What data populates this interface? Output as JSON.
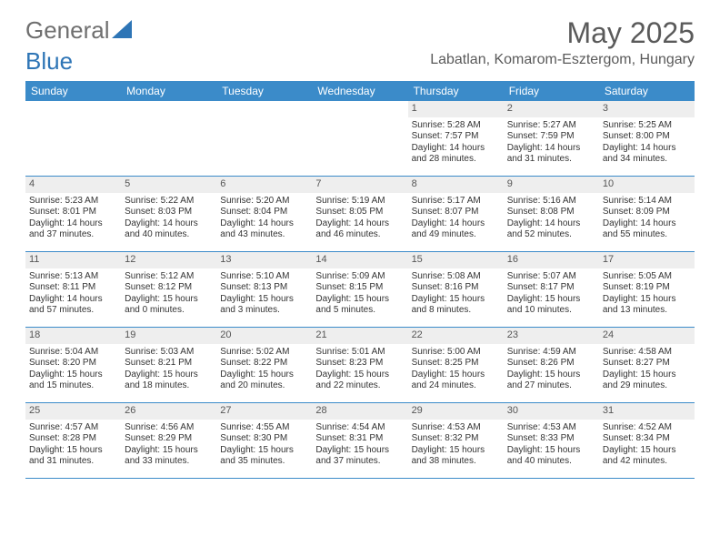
{
  "logo": {
    "text_gray": "General",
    "text_blue": "Blue"
  },
  "title": "May 2025",
  "location": "Labatlan, Komarom-Esztergom, Hungary",
  "colors": {
    "header_bg": "#3b8bc9",
    "header_text": "#ffffff",
    "daynum_bg": "#eeeeee",
    "border": "#3b8bc9",
    "text": "#333333",
    "logo_gray": "#6f6f6f",
    "logo_blue": "#2e75b6"
  },
  "day_names": [
    "Sunday",
    "Monday",
    "Tuesday",
    "Wednesday",
    "Thursday",
    "Friday",
    "Saturday"
  ],
  "labels": {
    "sunrise": "Sunrise:",
    "sunset": "Sunset:",
    "daylight": "Daylight:"
  },
  "weeks": [
    [
      null,
      null,
      null,
      null,
      {
        "n": "1",
        "sunrise": "5:28 AM",
        "sunset": "7:57 PM",
        "day_a": "14 hours",
        "day_b": "and 28 minutes."
      },
      {
        "n": "2",
        "sunrise": "5:27 AM",
        "sunset": "7:59 PM",
        "day_a": "14 hours",
        "day_b": "and 31 minutes."
      },
      {
        "n": "3",
        "sunrise": "5:25 AM",
        "sunset": "8:00 PM",
        "day_a": "14 hours",
        "day_b": "and 34 minutes."
      }
    ],
    [
      {
        "n": "4",
        "sunrise": "5:23 AM",
        "sunset": "8:01 PM",
        "day_a": "14 hours",
        "day_b": "and 37 minutes."
      },
      {
        "n": "5",
        "sunrise": "5:22 AM",
        "sunset": "8:03 PM",
        "day_a": "14 hours",
        "day_b": "and 40 minutes."
      },
      {
        "n": "6",
        "sunrise": "5:20 AM",
        "sunset": "8:04 PM",
        "day_a": "14 hours",
        "day_b": "and 43 minutes."
      },
      {
        "n": "7",
        "sunrise": "5:19 AM",
        "sunset": "8:05 PM",
        "day_a": "14 hours",
        "day_b": "and 46 minutes."
      },
      {
        "n": "8",
        "sunrise": "5:17 AM",
        "sunset": "8:07 PM",
        "day_a": "14 hours",
        "day_b": "and 49 minutes."
      },
      {
        "n": "9",
        "sunrise": "5:16 AM",
        "sunset": "8:08 PM",
        "day_a": "14 hours",
        "day_b": "and 52 minutes."
      },
      {
        "n": "10",
        "sunrise": "5:14 AM",
        "sunset": "8:09 PM",
        "day_a": "14 hours",
        "day_b": "and 55 minutes."
      }
    ],
    [
      {
        "n": "11",
        "sunrise": "5:13 AM",
        "sunset": "8:11 PM",
        "day_a": "14 hours",
        "day_b": "and 57 minutes."
      },
      {
        "n": "12",
        "sunrise": "5:12 AM",
        "sunset": "8:12 PM",
        "day_a": "15 hours",
        "day_b": "and 0 minutes."
      },
      {
        "n": "13",
        "sunrise": "5:10 AM",
        "sunset": "8:13 PM",
        "day_a": "15 hours",
        "day_b": "and 3 minutes."
      },
      {
        "n": "14",
        "sunrise": "5:09 AM",
        "sunset": "8:15 PM",
        "day_a": "15 hours",
        "day_b": "and 5 minutes."
      },
      {
        "n": "15",
        "sunrise": "5:08 AM",
        "sunset": "8:16 PM",
        "day_a": "15 hours",
        "day_b": "and 8 minutes."
      },
      {
        "n": "16",
        "sunrise": "5:07 AM",
        "sunset": "8:17 PM",
        "day_a": "15 hours",
        "day_b": "and 10 minutes."
      },
      {
        "n": "17",
        "sunrise": "5:05 AM",
        "sunset": "8:19 PM",
        "day_a": "15 hours",
        "day_b": "and 13 minutes."
      }
    ],
    [
      {
        "n": "18",
        "sunrise": "5:04 AM",
        "sunset": "8:20 PM",
        "day_a": "15 hours",
        "day_b": "and 15 minutes."
      },
      {
        "n": "19",
        "sunrise": "5:03 AM",
        "sunset": "8:21 PM",
        "day_a": "15 hours",
        "day_b": "and 18 minutes."
      },
      {
        "n": "20",
        "sunrise": "5:02 AM",
        "sunset": "8:22 PM",
        "day_a": "15 hours",
        "day_b": "and 20 minutes."
      },
      {
        "n": "21",
        "sunrise": "5:01 AM",
        "sunset": "8:23 PM",
        "day_a": "15 hours",
        "day_b": "and 22 minutes."
      },
      {
        "n": "22",
        "sunrise": "5:00 AM",
        "sunset": "8:25 PM",
        "day_a": "15 hours",
        "day_b": "and 24 minutes."
      },
      {
        "n": "23",
        "sunrise": "4:59 AM",
        "sunset": "8:26 PM",
        "day_a": "15 hours",
        "day_b": "and 27 minutes."
      },
      {
        "n": "24",
        "sunrise": "4:58 AM",
        "sunset": "8:27 PM",
        "day_a": "15 hours",
        "day_b": "and 29 minutes."
      }
    ],
    [
      {
        "n": "25",
        "sunrise": "4:57 AM",
        "sunset": "8:28 PM",
        "day_a": "15 hours",
        "day_b": "and 31 minutes."
      },
      {
        "n": "26",
        "sunrise": "4:56 AM",
        "sunset": "8:29 PM",
        "day_a": "15 hours",
        "day_b": "and 33 minutes."
      },
      {
        "n": "27",
        "sunrise": "4:55 AM",
        "sunset": "8:30 PM",
        "day_a": "15 hours",
        "day_b": "and 35 minutes."
      },
      {
        "n": "28",
        "sunrise": "4:54 AM",
        "sunset": "8:31 PM",
        "day_a": "15 hours",
        "day_b": "and 37 minutes."
      },
      {
        "n": "29",
        "sunrise": "4:53 AM",
        "sunset": "8:32 PM",
        "day_a": "15 hours",
        "day_b": "and 38 minutes."
      },
      {
        "n": "30",
        "sunrise": "4:53 AM",
        "sunset": "8:33 PM",
        "day_a": "15 hours",
        "day_b": "and 40 minutes."
      },
      {
        "n": "31",
        "sunrise": "4:52 AM",
        "sunset": "8:34 PM",
        "day_a": "15 hours",
        "day_b": "and 42 minutes."
      }
    ]
  ]
}
